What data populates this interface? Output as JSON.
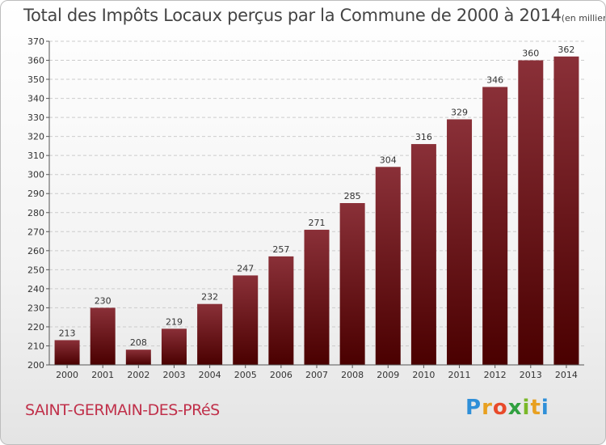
{
  "chart_data": {
    "type": "bar",
    "title": "Total des Impôts Locaux perçus par la Commune de 2000 à 2014",
    "unit_label": "(en milliers d'€)",
    "categories": [
      "2000",
      "2001",
      "2002",
      "2003",
      "2004",
      "2005",
      "2006",
      "2007",
      "2008",
      "2009",
      "2010",
      "2011",
      "2012",
      "2013",
      "2014"
    ],
    "values": [
      213,
      230,
      208,
      219,
      232,
      247,
      257,
      271,
      285,
      304,
      316,
      329,
      346,
      360,
      362
    ],
    "ylim": [
      200,
      370
    ],
    "yticks": [
      200,
      210,
      220,
      230,
      240,
      250,
      260,
      270,
      280,
      290,
      300,
      310,
      320,
      330,
      340,
      350,
      360,
      370
    ],
    "grid": true,
    "xlabel": "",
    "ylabel": ""
  },
  "commune": "SAINT-GERMAIN-DES-PRéS",
  "logo": {
    "letters": [
      "P",
      "r",
      "o",
      "x",
      "i",
      "t",
      "i"
    ]
  },
  "colors": {
    "bar_top": "#8a3038",
    "bar_bottom": "#4a0000",
    "axis": "#555555",
    "grid": "#cccccc"
  }
}
